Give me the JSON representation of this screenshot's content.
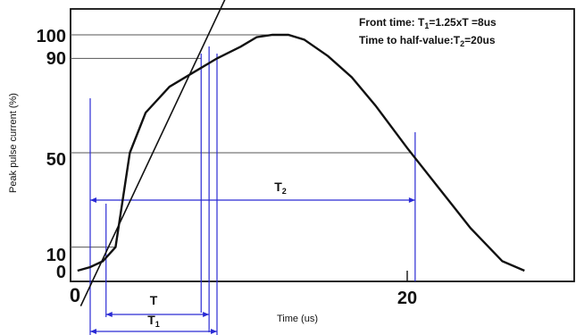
{
  "chart_data": {
    "type": "line",
    "xlabel": "Time (us)",
    "ylabel": "Peak pulse current (%)",
    "x_ticks": [
      "0",
      "20"
    ],
    "y_ticks": [
      "0",
      "10",
      "50",
      "90",
      "100"
    ],
    "grid": false,
    "series": [
      {
        "x": [
          -0.8,
          0.0,
          0.8,
          1.6,
          2.5,
          3.5,
          5.0,
          6.5,
          8.0,
          9.5,
          10.5,
          11.5,
          12.5,
          13.5,
          15.0,
          16.5,
          18.0,
          20.0,
          22.0,
          24.0,
          26.0,
          27.4
        ],
        "y": [
          0,
          1.5,
          4,
          10,
          50,
          67,
          78,
          84,
          90,
          95,
          99,
          100,
          100,
          98,
          91,
          82,
          70,
          52,
          35,
          18,
          4,
          0
        ]
      }
    ],
    "front_line": {
      "x": [
        -0.6,
        8.5
      ],
      "y": [
        -15,
        115
      ]
    },
    "annotations": [
      {
        "text": "Front time: T",
        "sub": "1",
        "rest": "=1.25xT =8us"
      },
      {
        "text": "Time to half-value:T",
        "sub": "2",
        "rest": "=20us"
      }
    ],
    "intervals": [
      {
        "label": "T",
        "sub": "",
        "from": 1.0,
        "to": 7.5
      },
      {
        "label": "T",
        "sub": "1",
        "from": 0.0,
        "to": 8.0
      },
      {
        "label": "T",
        "sub": "2",
        "from": 0.0,
        "to": 20.5
      }
    ],
    "colors": {
      "curve": "#111111",
      "guides": "#2b2bd4",
      "levels": "#555555"
    }
  }
}
